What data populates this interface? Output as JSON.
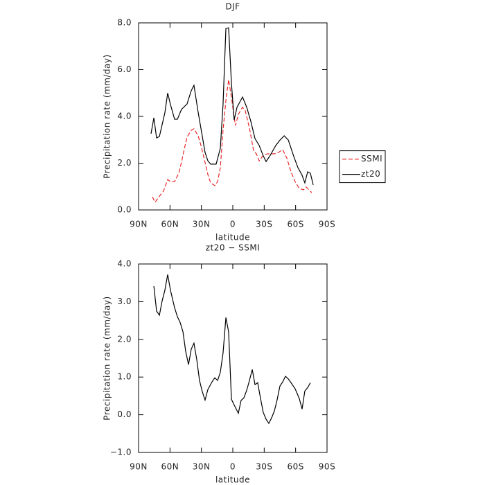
{
  "chart_data": [
    {
      "type": "line",
      "title": "DJF",
      "xlabel": "latitude",
      "ylabel": "Precipitation rate (mm/day)",
      "xlim": [
        90,
        -90
      ],
      "xticks": [
        {
          "value": 90,
          "label": "90N"
        },
        {
          "value": 60,
          "label": "60N"
        },
        {
          "value": 30,
          "label": "30N"
        },
        0,
        {
          "value": -30,
          "label": "30S"
        },
        {
          "value": -60,
          "label": "60S"
        },
        {
          "value": -90,
          "label": "90S"
        }
      ],
      "ylim": [
        0,
        8
      ],
      "yticks": [
        {
          "value": 0,
          "label": "0.0"
        },
        {
          "value": 2,
          "label": "2.0"
        },
        {
          "value": 4,
          "label": "4.0"
        },
        {
          "value": 6,
          "label": "6.0"
        },
        {
          "value": 8,
          "label": "8.0"
        }
      ],
      "legend": "right",
      "series": [
        {
          "name": "SSMI",
          "color": "#e8282a",
          "style": "dashed",
          "x": [
            76.8,
            74.1,
            70.1,
            66.2,
            62.2,
            59.5,
            55.6,
            51.6,
            49.0,
            46.3,
            43.7,
            39.7,
            37.1,
            33.1,
            30.4,
            27.8,
            23.8,
            21.2,
            17.2,
            14.5,
            11.9,
            9.3,
            6.6,
            4.0,
            1.3,
            -1.3,
            -2.6,
            -5.3,
            -9.3,
            -11.9,
            -15.9,
            -19.9,
            -22.5,
            -25.2,
            -29.1,
            -33.1,
            -39.7,
            -43.7,
            -47.6,
            -51.6,
            -55.6,
            -59.5,
            -63.5,
            -67.5,
            -70.1,
            -72.8,
            -75.4
          ],
          "values": [
            0.56,
            0.33,
            0.59,
            0.8,
            1.3,
            1.21,
            1.21,
            1.57,
            2.04,
            2.61,
            3.11,
            3.41,
            3.47,
            3.17,
            2.76,
            2.28,
            1.51,
            1.16,
            1.04,
            1.21,
            1.81,
            3.41,
            4.68,
            5.57,
            4.83,
            3.94,
            3.61,
            4.09,
            4.39,
            4.24,
            3.5,
            2.52,
            2.4,
            2.1,
            2.34,
            2.4,
            2.4,
            2.46,
            2.58,
            2.22,
            1.63,
            1.21,
            0.92,
            0.86,
            0.98,
            0.86,
            0.74
          ]
        },
        {
          "name": "zt20",
          "color": "#000000",
          "style": "solid",
          "x": [
            78.1,
            75.4,
            72.8,
            70.1,
            64.9,
            62.2,
            59.5,
            55.6,
            52.9,
            49.0,
            43.7,
            39.7,
            37.1,
            33.1,
            29.1,
            26.5,
            23.8,
            21.2,
            15.9,
            11.9,
            9.3,
            6.6,
            4.0,
            1.3,
            -1.3,
            -4.0,
            -9.3,
            -13.3,
            -17.2,
            -21.2,
            -25.2,
            -29.1,
            -31.8,
            -35.8,
            -41.1,
            -45.1,
            -49.1,
            -53.0,
            -58.3,
            -62.2,
            -66.2,
            -68.8,
            -71.5,
            -74.1,
            -76.8
          ],
          "values": [
            3.26,
            3.94,
            3.08,
            3.14,
            4.15,
            5.0,
            4.5,
            3.88,
            3.88,
            4.3,
            4.53,
            5.1,
            5.33,
            4.18,
            3.14,
            2.46,
            2.1,
            1.96,
            1.96,
            2.64,
            4.53,
            7.76,
            7.79,
            5.42,
            3.85,
            4.39,
            4.83,
            4.39,
            3.79,
            3.05,
            2.76,
            2.31,
            2.07,
            2.34,
            2.76,
            2.99,
            3.17,
            2.99,
            2.28,
            1.81,
            1.48,
            1.16,
            1.63,
            1.57,
            1.07
          ]
        }
      ]
    },
    {
      "type": "line",
      "title": "zt20 − SSMI",
      "xlabel": "latitude",
      "ylabel": "Precipitation rate (mm/day)",
      "xlim": [
        90,
        -90
      ],
      "xticks": [
        {
          "value": 90,
          "label": "90N"
        },
        {
          "value": 60,
          "label": "60N"
        },
        {
          "value": 30,
          "label": "30N"
        },
        0,
        {
          "value": -30,
          "label": "30S"
        },
        {
          "value": -60,
          "label": "60S"
        },
        {
          "value": -90,
          "label": "90S"
        }
      ],
      "ylim": [
        -1,
        4
      ],
      "yticks": [
        {
          "value": -1,
          "label": "−1.0"
        },
        {
          "value": 0,
          "label": "0.0"
        },
        {
          "value": 1,
          "label": "1.0"
        },
        {
          "value": 2,
          "label": "2.0"
        },
        {
          "value": 3,
          "label": "3.0"
        },
        {
          "value": 4,
          "label": "4.0"
        }
      ],
      "series": [
        {
          "color": "#000000",
          "style": "solid",
          "x": [
            75.4,
            72.8,
            70.1,
            67.5,
            64.9,
            62.2,
            59.5,
            55.6,
            52.9,
            50.3,
            47.6,
            45.0,
            42.3,
            39.7,
            37.1,
            34.4,
            31.8,
            29.1,
            26.5,
            23.8,
            19.9,
            17.2,
            14.5,
            11.9,
            9.3,
            6.6,
            4.0,
            1.3,
            -1.3,
            -5.3,
            -7.9,
            -10.6,
            -13.3,
            -15.9,
            -18.6,
            -21.2,
            -23.8,
            -26.5,
            -29.1,
            -31.8,
            -34.4,
            -37.1,
            -39.7,
            -42.3,
            -45.0,
            -47.6,
            -50.3,
            -53.0,
            -55.6,
            -59.5,
            -63.5,
            -66.2,
            -68.8,
            -71.5,
            -74.1
          ],
          "values": [
            3.41,
            2.75,
            2.64,
            3.02,
            3.3,
            3.72,
            3.3,
            2.84,
            2.6,
            2.45,
            2.2,
            1.68,
            1.33,
            1.74,
            1.9,
            1.46,
            0.91,
            0.61,
            0.39,
            0.67,
            0.87,
            0.98,
            0.91,
            1.13,
            1.64,
            2.58,
            2.2,
            0.41,
            0.26,
            0.04,
            0.38,
            0.45,
            0.65,
            0.91,
            1.2,
            0.8,
            0.85,
            0.43,
            0.06,
            -0.12,
            -0.23,
            -0.08,
            0.1,
            0.39,
            0.76,
            0.87,
            1.02,
            0.95,
            0.85,
            0.69,
            0.43,
            0.15,
            0.63,
            0.72,
            0.85
          ]
        }
      ]
    }
  ]
}
